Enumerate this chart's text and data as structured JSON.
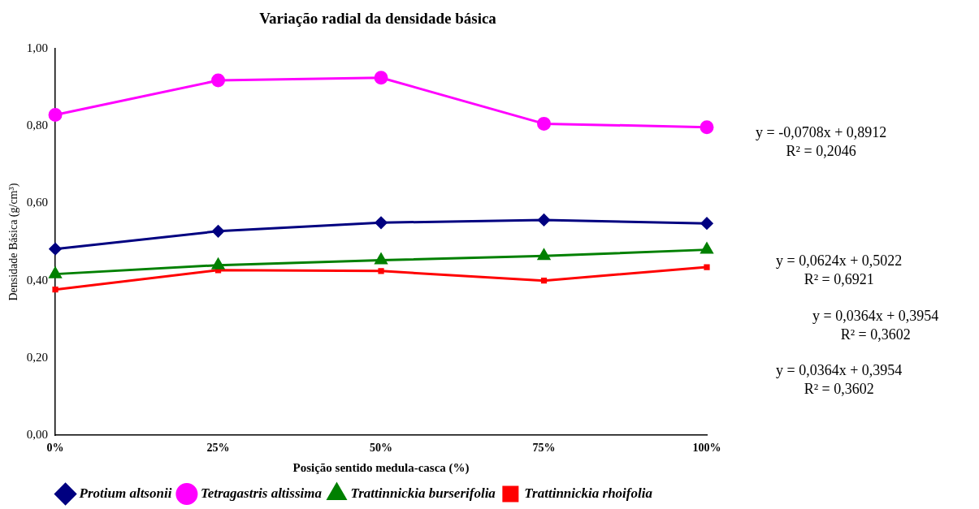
{
  "chart_data": {
    "type": "line",
    "title": "Variação radial da densidade básica",
    "xlabel": "Posição sentido medula-casca (%)",
    "ylabel": "Densidade Básica (g/cm³)",
    "categories": [
      "0%",
      "25%",
      "50%",
      "75%",
      "100%"
    ],
    "series": [
      {
        "name": "Protium altsonii",
        "color": "#000080",
        "marker": "diamond",
        "values": [
          0.482,
          0.528,
          0.55,
          0.557,
          0.548
        ]
      },
      {
        "name": "Tetragastris altissima",
        "color": "#ff00ff",
        "marker": "circle",
        "values": [
          0.829,
          0.918,
          0.925,
          0.806,
          0.797
        ]
      },
      {
        "name": "Trattinnickia burserifolia",
        "color": "#008000",
        "marker": "triangle",
        "values": [
          0.417,
          0.44,
          0.453,
          0.464,
          0.48
        ]
      },
      {
        "name": "Trattinnickia rhoifolia",
        "color": "#ff0000",
        "marker": "square",
        "values": [
          0.377,
          0.427,
          0.425,
          0.4,
          0.435
        ]
      }
    ],
    "ylim": [
      0,
      1
    ],
    "yticks": [
      {
        "value": 0,
        "label": "0,00"
      },
      {
        "value": 0.2,
        "label": "0,20"
      },
      {
        "value": 0.4,
        "label": "0,40"
      },
      {
        "value": 0.6,
        "label": "0,60"
      },
      {
        "value": 0.8,
        "label": "0,80"
      },
      {
        "value": 1,
        "label": "1,00"
      }
    ],
    "grid": false,
    "legend": "bottom",
    "line_style": "solid",
    "annotations": [
      "y = -0,0708x + 0,8912\nR² = 0,2046",
      "y = 0,0624x + 0,5022\nR² = 0,6921",
      "y = 0,0364x + 0,3954\nR² = 0,3602",
      "y = 0,0364x + 0,3954\nR² = 0,3602"
    ]
  }
}
